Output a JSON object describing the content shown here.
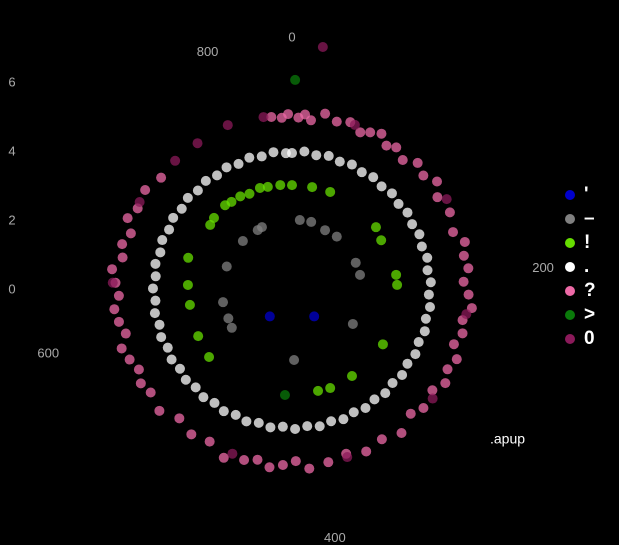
{
  "chart_data": {
    "type": "polar-scatter",
    "annotation": ".apup",
    "rlim": [
      0,
      7
    ],
    "yticks": [
      0,
      2,
      4,
      6
    ],
    "thetalim": [
      0,
      846
    ],
    "thetaticks": [
      0,
      200,
      400,
      600,
      800
    ],
    "series": [
      {
        "name": "'",
        "color": "#0000cc",
        "r": [
          1.0,
          1.0
        ],
        "theta": [
          517,
          329
        ]
      },
      {
        "name": "–",
        "color": "#808080",
        "r": [
          2.04,
          2.05,
          1.98,
          2.02,
          2.01,
          2.02,
          2.02,
          2.03,
          2.06,
          2.02,
          2.03,
          2.01,
          2.01,
          2.0,
          2.02
        ],
        "theta": [
          15,
          37,
          68,
          94,
          157,
          182,
          280,
          419,
          559,
          578,
          611,
          681,
          740,
          776,
          786
        ]
      },
      {
        "name": "!",
        "color": "#66dd00",
        "r": [
          3.03,
          3.13,
          3.1,
          3.1,
          3.06,
          3.04,
          3.04,
          3.05,
          3.04,
          2.96,
          3.05,
          3.05,
          3.07,
          3.04,
          3.05,
          3.02,
          3.09,
          3.03,
          2.99,
          3.02,
          3.15,
          3.08,
          3.1,
          3.05,
          3.07
        ],
        "theta": [
          725,
          756,
          778,
          805,
          831,
          0,
          26,
          50,
          125,
          143,
          192,
          205,
          284,
          341,
          373,
          389,
          543,
          573,
          615,
          641,
          675,
          735,
          765,
          790,
          815
        ]
      },
      {
        "name": ".",
        "color": "#ffffff",
        "r": [
          3.97,
          4.03,
          3.97,
          4.03,
          3.97,
          4.03,
          3.97,
          4.03,
          3.97,
          4.03,
          3.97,
          4.03,
          3.97,
          4.03,
          3.97,
          4.03,
          3.97,
          4.03,
          3.97,
          4.03,
          3.97,
          4.03,
          3.97,
          4.03,
          3.97,
          4.03,
          3.97,
          4.03,
          3.97,
          4.03,
          3.97,
          4.03,
          3.97,
          4.03,
          3.97,
          4.03,
          3.97,
          4.03,
          3.97,
          4.03,
          3.97,
          4.03,
          3.97,
          4.03,
          3.97,
          4.03,
          3.97,
          4.03,
          3.97,
          4.03,
          3.97,
          4.03,
          3.97,
          4.03,
          3.97,
          4.03,
          3.97,
          4.03,
          3.97,
          4.03,
          3.97,
          4.03,
          3.97,
          4.03,
          3.97,
          4.03,
          3.97,
          4.03,
          3.97,
          4.03,
          3.97
        ],
        "theta": [
          0,
          12,
          24,
          36,
          48,
          60,
          72,
          84,
          96,
          108,
          120,
          132,
          144,
          156,
          168,
          180,
          192,
          204,
          216,
          228,
          240,
          252,
          264,
          276,
          288,
          300,
          312,
          324,
          336,
          348,
          360,
          372,
          384,
          396,
          408,
          420,
          432,
          444,
          456,
          468,
          480,
          492,
          504,
          516,
          528,
          540,
          552,
          564,
          576,
          588,
          600,
          612,
          624,
          636,
          648,
          660,
          672,
          684,
          696,
          708,
          720,
          732,
          744,
          756,
          768,
          780,
          792,
          804,
          816,
          828,
          840
        ]
      },
      {
        "name": "?",
        "color": "#ee6aa7",
        "r": [
          5.0,
          5.1,
          4.95,
          5.2,
          5.05,
          5.15,
          4.98,
          5.1,
          5.22,
          5.0,
          5.12,
          4.95,
          5.18,
          5.05,
          5.25,
          5.0,
          5.1,
          4.96,
          5.2,
          5.08,
          5.15,
          4.98,
          5.12,
          5.24,
          5.02,
          5.1,
          4.95,
          5.18,
          5.06,
          5.2,
          5.0,
          5.12,
          4.97,
          5.22,
          5.05,
          5.15,
          5.0,
          5.1,
          5.2,
          4.96,
          5.08,
          5.18,
          5.02,
          5.12,
          5.25,
          5.0,
          5.1,
          4.95,
          5.2,
          5.06,
          5.15,
          5.0,
          5.12,
          5.22,
          4.98,
          5.1,
          5.18,
          5.02,
          5.12,
          5.25,
          5.0,
          5.1,
          4.95,
          5.2,
          5.06,
          5.15,
          5.0,
          5.05,
          5.0,
          5.1
        ],
        "theta": [
          5,
          10,
          15,
          25,
          35,
          45,
          55,
          62,
          70,
          78,
          85,
          95,
          105,
          115,
          125,
          135,
          150,
          165,
          175,
          185,
          195,
          205,
          215,
          225,
          235,
          245,
          255,
          265,
          275,
          285,
          295,
          310,
          320,
          335,
          350,
          365,
          380,
          395,
          410,
          420,
          430,
          440,
          450,
          460,
          475,
          490,
          505,
          520,
          535,
          550,
          560,
          570,
          580,
          590,
          600,
          610,
          620,
          630,
          640,
          650,
          660,
          670,
          680,
          690,
          700,
          715,
          730,
          830,
          838,
          843
        ]
      },
      {
        "name": ">",
        "color": "#0a7a0a",
        "r": [
          6.09,
          3.05
        ],
        "theta": [
          2,
          432
        ]
      },
      {
        "name": "0",
        "color": "#8b1a5a",
        "r": [
          7.1,
          5.06,
          5.05,
          5.13,
          5.08,
          5.12,
          5.2,
          5.1,
          5.15,
          5.1,
          5.05,
          5.2,
          5.1
        ],
        "theta": [
          17,
          769,
          747,
          796,
          824,
          49,
          140,
          230,
          300,
          380,
          470,
          640,
          705
        ]
      }
    ]
  }
}
